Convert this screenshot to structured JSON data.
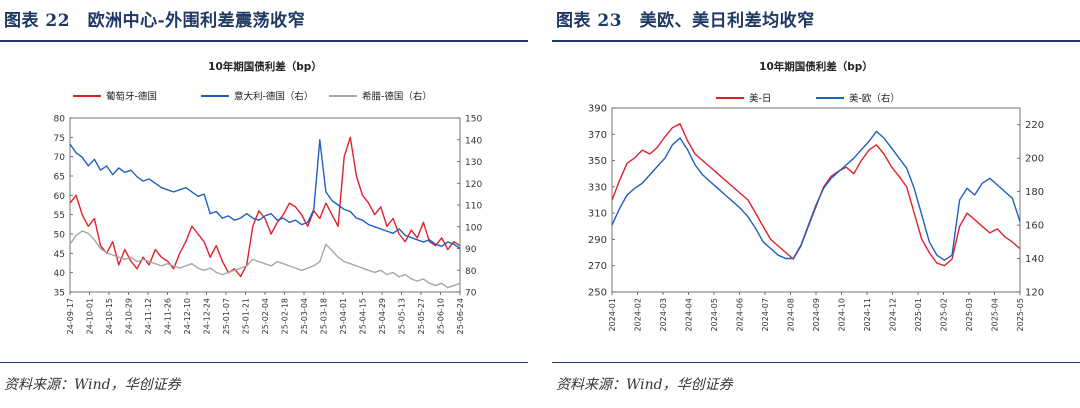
{
  "left": {
    "figure_title": "图表 22　欧洲中心-外围利差震荡收窄",
    "source": "资料来源：Wind，华创证券",
    "chart_data": {
      "type": "line",
      "title": "10年期国债利差（bp）",
      "left_axis": {
        "ylim": [
          35,
          80
        ],
        "ticks": [
          35,
          40,
          45,
          50,
          55,
          60,
          65,
          70,
          75,
          80
        ]
      },
      "right_axis": {
        "ylim": [
          70,
          150
        ],
        "ticks": [
          70,
          80,
          90,
          100,
          110,
          120,
          130,
          140,
          150
        ]
      },
      "x_ticks": [
        "24-09-17",
        "24-10-01",
        "24-10-15",
        "24-10-29",
        "24-11-12",
        "24-11-26",
        "24-12-10",
        "24-12-24",
        "25-01-07",
        "25-01-21",
        "25-02-04",
        "25-02-18",
        "25-03-04",
        "25-03-18",
        "25-04-01",
        "25-04-15",
        "25-04-29",
        "25-05-13",
        "25-05-27",
        "25-06-10",
        "25-06-24"
      ],
      "series": [
        {
          "name": "葡萄牙-德国",
          "axis": "left",
          "color": "#e0202a",
          "values": [
            58,
            60,
            55,
            52,
            54,
            47,
            45,
            48,
            42,
            46,
            43,
            41,
            44,
            42,
            46,
            44,
            43,
            41,
            45,
            48,
            52,
            50,
            48,
            44,
            47,
            43,
            40,
            41,
            39,
            42,
            52,
            56,
            54,
            50,
            53,
            55,
            58,
            57,
            55,
            52,
            56,
            54,
            58,
            55,
            52,
            70,
            75,
            65,
            60,
            58,
            55,
            57,
            52,
            54,
            50,
            48,
            51,
            49,
            53,
            48,
            47,
            49,
            46,
            48,
            47
          ]
        },
        {
          "name": "意大利-德国（右）",
          "axis": "right",
          "color": "#1f5fbf",
          "values": [
            138,
            134,
            132,
            128,
            131,
            126,
            128,
            124,
            127,
            125,
            126,
            123,
            121,
            122,
            120,
            118,
            117,
            116,
            117,
            118,
            116,
            114,
            115,
            106,
            107,
            104,
            105,
            103,
            104,
            106,
            104,
            103,
            105,
            106,
            103,
            104,
            102,
            103,
            101,
            102,
            108,
            140,
            116,
            112,
            110,
            108,
            107,
            104,
            103,
            101,
            100,
            99,
            98,
            97,
            99,
            96,
            95,
            94,
            93,
            94,
            92,
            91,
            93,
            92,
            90
          ]
        },
        {
          "name": "希腊-德国（右）",
          "axis": "right",
          "color": "#a6a6a6",
          "values": [
            92,
            96,
            98,
            97,
            94,
            90,
            88,
            87,
            86,
            85,
            86,
            84,
            85,
            84,
            83,
            82,
            83,
            82,
            81,
            82,
            83,
            81,
            80,
            81,
            79,
            78,
            79,
            80,
            81,
            82,
            85,
            84,
            83,
            82,
            84,
            83,
            82,
            81,
            80,
            81,
            82,
            84,
            92,
            89,
            86,
            84,
            83,
            82,
            81,
            80,
            79,
            80,
            78,
            79,
            77,
            78,
            76,
            75,
            76,
            74,
            73,
            74,
            72,
            73,
            74
          ]
        }
      ]
    }
  },
  "right": {
    "figure_title": "图表 23　美欧、美日利差均收窄",
    "source": "资料来源：Wind，华创证券",
    "chart_data": {
      "type": "line",
      "title": "10年期国债利差（bp）",
      "left_axis": {
        "ylim": [
          250,
          390
        ],
        "ticks": [
          250,
          270,
          290,
          310,
          330,
          350,
          370,
          390
        ]
      },
      "right_axis": {
        "ylim": [
          120,
          230
        ],
        "ticks": [
          120,
          140,
          160,
          180,
          200,
          220
        ]
      },
      "x_ticks": [
        "2024-01",
        "2024-02",
        "2024-03",
        "2024-04",
        "2024-05",
        "2024-06",
        "2024-07",
        "2024-08",
        "2024-09",
        "2024-10",
        "2024-11",
        "2024-12",
        "2025-01",
        "2025-02",
        "2025-03",
        "2025-04",
        "2025-05"
      ],
      "series": [
        {
          "name": "美-日",
          "axis": "left",
          "color": "#e0202a",
          "values": [
            320,
            335,
            348,
            352,
            358,
            355,
            360,
            368,
            375,
            378,
            365,
            355,
            350,
            345,
            340,
            335,
            330,
            325,
            320,
            310,
            300,
            290,
            285,
            280,
            275,
            285,
            300,
            315,
            330,
            338,
            342,
            345,
            340,
            350,
            358,
            362,
            355,
            345,
            338,
            330,
            310,
            290,
            280,
            272,
            270,
            275,
            300,
            310,
            305,
            300,
            295,
            298,
            292,
            288,
            283
          ]
        },
        {
          "name": "美-欧（右）",
          "axis": "right",
          "color": "#1f5fbf",
          "values": [
            160,
            170,
            178,
            182,
            185,
            190,
            195,
            200,
            208,
            212,
            205,
            196,
            190,
            186,
            182,
            178,
            174,
            170,
            165,
            158,
            150,
            146,
            142,
            140,
            140,
            148,
            160,
            172,
            182,
            188,
            192,
            196,
            200,
            205,
            210,
            216,
            212,
            206,
            200,
            194,
            182,
            166,
            150,
            142,
            139,
            142,
            175,
            182,
            178,
            185,
            188,
            184,
            180,
            176,
            162
          ]
        }
      ]
    }
  }
}
